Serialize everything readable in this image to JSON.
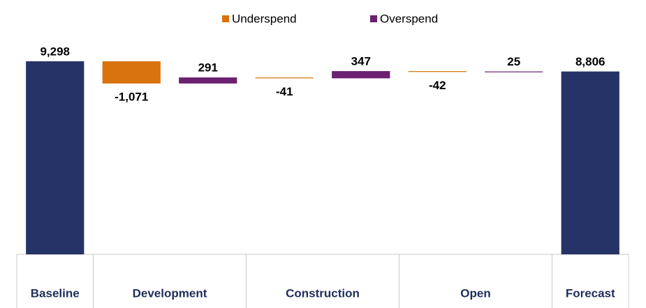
{
  "chart_data": {
    "type": "waterfall",
    "series": [
      {
        "name": "Underspend",
        "color": "#d9730d"
      },
      {
        "name": "Overspend",
        "color": "#6b2070"
      }
    ],
    "total_color": "#253366",
    "ylim": [
      0,
      10000
    ],
    "groups": [
      {
        "label": "Baseline",
        "kind": "total",
        "values": [
          9298
        ],
        "value_labels": [
          "9,298"
        ]
      },
      {
        "label": "Development",
        "kind": "change",
        "values": [
          -1071,
          291
        ],
        "value_labels": [
          "-1,071",
          "291"
        ]
      },
      {
        "label": "Construction",
        "kind": "change",
        "values": [
          -41,
          347
        ],
        "value_labels": [
          "-41",
          "347"
        ]
      },
      {
        "label": "Open",
        "kind": "change",
        "values": [
          -42,
          25
        ],
        "value_labels": [
          "-42",
          "25"
        ]
      },
      {
        "label": "Forecast",
        "kind": "total",
        "values": [
          8806
        ],
        "value_labels": [
          "8,806"
        ]
      }
    ]
  }
}
